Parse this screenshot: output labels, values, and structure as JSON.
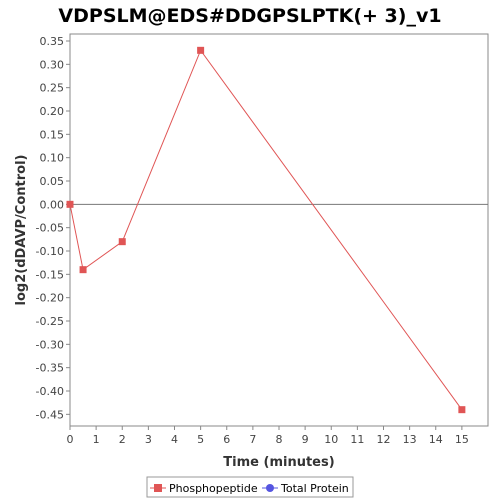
{
  "chart_data": {
    "type": "line",
    "title": "VDPSLM@EDS#DDGPSLPTK(+ 3)_v1",
    "xlabel": "Time (minutes)",
    "ylabel": "log2(dDAVP/Control)",
    "xlim": [
      0,
      16
    ],
    "ylim": [
      -0.475,
      0.365
    ],
    "x_ticks": [
      0,
      1,
      2,
      3,
      4,
      5,
      6,
      7,
      8,
      9,
      10,
      11,
      12,
      13,
      14,
      15
    ],
    "y_ticks": [
      0.35,
      0.3,
      0.25,
      0.2,
      0.15,
      0.1,
      0.05,
      0.0,
      -0.05,
      -0.1,
      -0.15,
      -0.2,
      -0.25,
      -0.3,
      -0.35,
      -0.4,
      -0.45
    ],
    "y_tick_labels": [
      "0.35",
      "0.30",
      "0.25",
      "0.20",
      "0.15",
      "0.10",
      "0.05",
      "0.00",
      "-0.05",
      "-0.10",
      "-0.15",
      "-0.20",
      "-0.25",
      "-0.30",
      "-0.35",
      "-0.40",
      "-0.45"
    ],
    "zero_line": true,
    "grid": false,
    "legend_position": "bottom",
    "series": [
      {
        "name": "Phosphopeptide",
        "color": "#e05555",
        "marker": "square",
        "x": [
          0,
          0.5,
          2,
          5,
          15
        ],
        "y": [
          0.0,
          -0.14,
          -0.08,
          0.33,
          -0.44
        ]
      },
      {
        "name": "Total Protein",
        "color": "#5555e0",
        "marker": "circle",
        "x": [],
        "y": []
      }
    ]
  }
}
